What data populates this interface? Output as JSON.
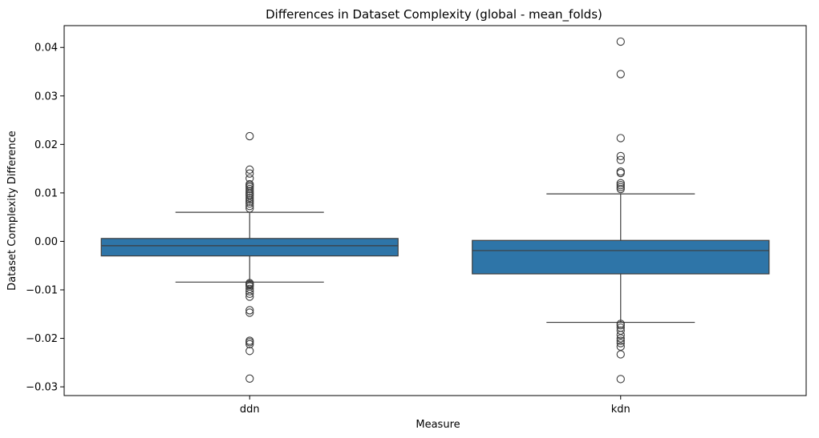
{
  "chart_data": {
    "type": "boxplot",
    "title": "Differences in Dataset Complexity (global - mean_folds)",
    "xlabel": "Measure",
    "ylabel": "Dataset Complexity Difference",
    "ylim": [
      -0.0318,
      0.0445
    ],
    "yticks": [
      {
        "value": -0.03,
        "label": "−0.03"
      },
      {
        "value": -0.02,
        "label": "−0.02"
      },
      {
        "value": -0.01,
        "label": "−0.01"
      },
      {
        "value": 0.0,
        "label": "0.00"
      },
      {
        "value": 0.01,
        "label": "0.01"
      },
      {
        "value": 0.02,
        "label": "0.02"
      },
      {
        "value": 0.03,
        "label": "0.03"
      },
      {
        "value": 0.04,
        "label": "0.04"
      }
    ],
    "categories": [
      "ddn",
      "kdn"
    ],
    "box_color": "#2e75a8",
    "boxes": [
      {
        "category": "ddn",
        "whisker_low": -0.0084,
        "q1": -0.003,
        "median": -0.0009,
        "q3": 0.0006,
        "whisker_high": 0.006,
        "outliers": [
          0.0217,
          0.0148,
          0.014,
          0.013,
          0.0118,
          0.0115,
          0.0112,
          0.0108,
          0.0104,
          0.01,
          0.0097,
          0.0094,
          0.009,
          0.0086,
          0.0082,
          0.0078,
          0.0073,
          0.0068,
          -0.0086,
          -0.0088,
          -0.009,
          -0.0093,
          -0.0098,
          -0.0103,
          -0.0108,
          -0.0114,
          -0.0142,
          -0.0147,
          -0.0205,
          -0.0208,
          -0.0212,
          -0.0226,
          -0.0283
        ]
      },
      {
        "category": "kdn",
        "whisker_low": -0.0167,
        "q1": -0.0067,
        "median": -0.0019,
        "q3": 0.0002,
        "whisker_high": 0.0098,
        "outliers": [
          0.0412,
          0.0345,
          0.0213,
          0.0176,
          0.0168,
          0.0144,
          0.0141,
          0.012,
          0.0116,
          0.0112,
          0.0108,
          -0.017,
          -0.0173,
          -0.0178,
          -0.0184,
          -0.0193,
          -0.02,
          -0.0205,
          -0.021,
          -0.0217,
          -0.0233,
          -0.0284
        ]
      }
    ]
  }
}
